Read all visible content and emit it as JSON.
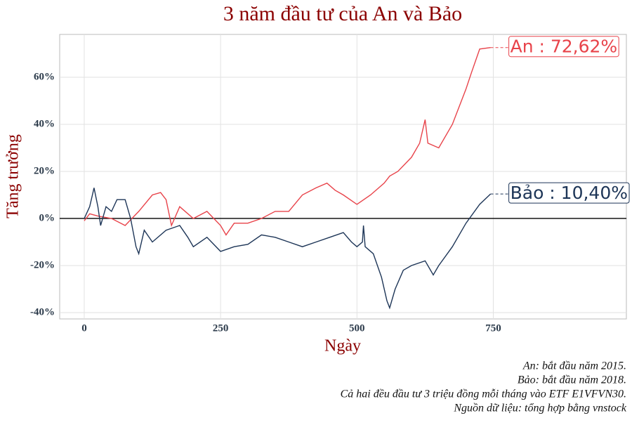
{
  "chart_data": {
    "type": "line",
    "title": "3 năm đầu tư của An và Bảo",
    "xlabel": "Ngày",
    "ylabel": "Tăng trưởng",
    "xlim": [
      -45,
      994
    ],
    "ylim": [
      -42.7,
      78.2
    ],
    "xticks": [
      0,
      250,
      500,
      750
    ],
    "yticks": [
      {
        "value": -40,
        "label": "-40%"
      },
      {
        "value": -20,
        "label": "-20%"
      },
      {
        "value": 0,
        "label": "0%"
      },
      {
        "value": 20,
        "label": "20%"
      },
      {
        "value": 40,
        "label": "40%"
      },
      {
        "value": 60,
        "label": "60%"
      }
    ],
    "grid": true,
    "series": [
      {
        "name": "An",
        "color": "#e8434a",
        "end_label": "An : 72,62%",
        "x": [
          0,
          10,
          25,
          50,
          75,
          100,
          125,
          140,
          150,
          160,
          175,
          200,
          225,
          250,
          260,
          275,
          300,
          325,
          350,
          375,
          400,
          425,
          445,
          460,
          475,
          500,
          525,
          550,
          560,
          575,
          600,
          615,
          625,
          630,
          650,
          675,
          700,
          710,
          725,
          745
        ],
        "values": [
          -1,
          2,
          1,
          0,
          -3,
          3,
          10,
          11,
          8,
          -3,
          5,
          0,
          3,
          -3,
          -7,
          -2,
          -2,
          0,
          3,
          3,
          10,
          13,
          15,
          12,
          10,
          6,
          10,
          15,
          18,
          20,
          26,
          32,
          42,
          32,
          30,
          40,
          55,
          62,
          72,
          72.62
        ]
      },
      {
        "name": "Bảo",
        "color": "#1d3557",
        "end_label": "Bảo : 10,40%",
        "x": [
          0,
          10,
          15,
          18,
          25,
          30,
          40,
          50,
          60,
          75,
          85,
          95,
          100,
          110,
          125,
          150,
          175,
          190,
          200,
          225,
          250,
          275,
          300,
          325,
          350,
          375,
          400,
          425,
          450,
          475,
          490,
          500,
          510,
          512,
          515,
          530,
          545,
          555,
          560,
          570,
          585,
          600,
          625,
          640,
          650,
          675,
          700,
          725,
          745
        ],
        "values": [
          0,
          5,
          10,
          13,
          5,
          -3,
          5,
          3,
          8,
          8,
          0,
          -12,
          -15,
          -5,
          -10,
          -5,
          -3,
          -8,
          -12,
          -8,
          -14,
          -12,
          -11,
          -7,
          -8,
          -10,
          -12,
          -10,
          -8,
          -6,
          -10,
          -12,
          -10,
          -3,
          -12,
          -15,
          -25,
          -35,
          -38,
          -30,
          -22,
          -20,
          -18,
          -24,
          -20,
          -12,
          -2,
          6,
          10.4
        ]
      }
    ],
    "caption": [
      "An: bắt đầu năm 2015.",
      "Bảo: bắt đầu năm 2018.",
      "Cả hai đều đầu tư 3 triệu đồng mỗi tháng vào ETF E1VFVN30.",
      "Nguồn dữ liệu: tổng hợp bằng vnstock"
    ]
  }
}
